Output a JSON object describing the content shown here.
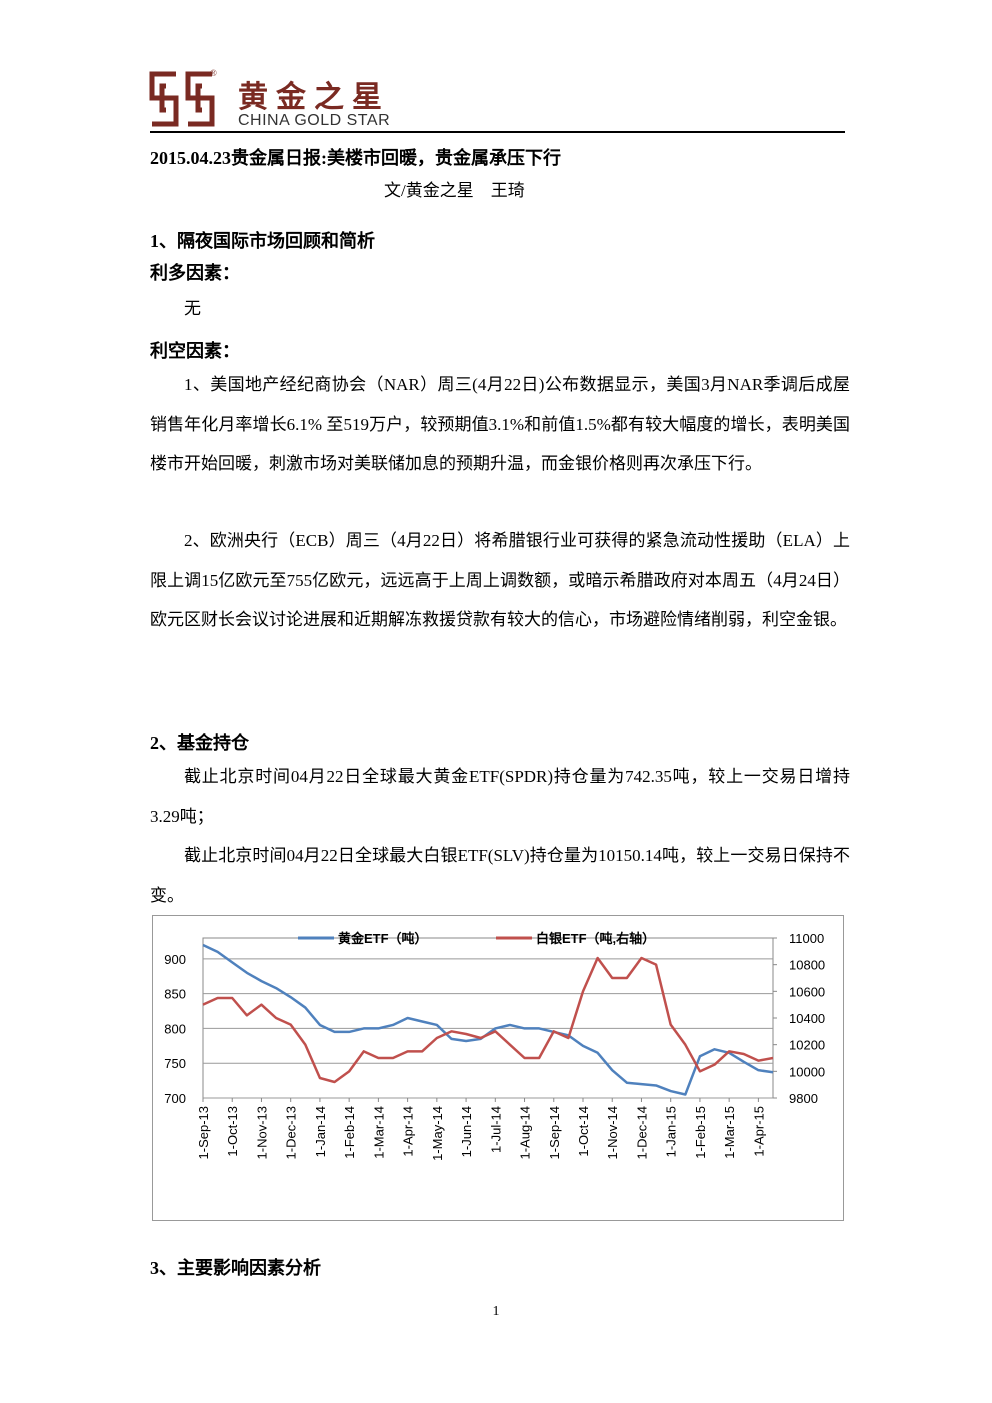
{
  "header": {
    "logo_cn": "黄金之星",
    "logo_en": "CHINA GOLD STAR",
    "registered": "®"
  },
  "title": "2015.04.23贵金属日报:美楼市回暖，贵金属承压下行",
  "byline": "文/黄金之星　王琦",
  "sections": [
    {
      "heading": "1、隔夜国际市场回顾和简析",
      "subsections": [
        {
          "heading": "利多因素：",
          "paragraphs": [
            "无"
          ]
        },
        {
          "heading": "利空因素：",
          "paragraphs": [
            "1、美国地产经纪商协会（NAR）周三(4月22日)公布数据显示，美国3月NAR季调后成屋销售年化月率增长6.1% 至519万户，较预期值3.1%和前值1.5%都有较大幅度的增长，表明美国楼市开始回暖，刺激市场对美联储加息的预期升温，而金银价格则再次承压下行。",
            "2、欧洲央行（ECB）周三（4月22日）将希腊银行业可获得的紧急流动性援助（ELA）上限上调15亿欧元至755亿欧元，远远高于上周上调数额，或暗示希腊政府对本周五（4月24日）欧元区财长会议讨论进展和近期解冻救援贷款有较大的信心，市场避险情绪削弱，利空金银。"
          ]
        }
      ]
    },
    {
      "heading": "2、基金持仓",
      "paragraphs": [
        "截止北京时间04月22日全球最大黄金ETF(SPDR)持仓量为742.35吨，较上一交易日增持3.29吨；",
        "截止北京时间04月22日全球最大白银ETF(SLV)持仓量为10150.14吨，较上一交易日保持不变。"
      ]
    },
    {
      "heading": "3、主要影响因素分析"
    }
  ],
  "chart_data": {
    "type": "line",
    "categories": [
      "1-Sep-13",
      null,
      "1-Oct-13",
      null,
      "1-Nov-13",
      null,
      "1-Dec-13",
      null,
      "1-Jan-14",
      null,
      "1-Feb-14",
      null,
      "1-Mar-14",
      null,
      "1-Apr-14",
      null,
      "1-May-14",
      null,
      "1-Jun-14",
      null,
      "1-Jul-14",
      null,
      "1-Aug-14",
      null,
      "1-Sep-14",
      null,
      "1-Oct-14",
      null,
      "1-Nov-14",
      null,
      "1-Dec-14",
      null,
      "1-Jan-15",
      null,
      "1-Feb-15",
      null,
      "1-Mar-15",
      null,
      "1-Apr-15",
      null
    ],
    "series": [
      {
        "name": "黄金ETF（吨）",
        "color": "#4f81bd",
        "values": [
          920,
          910,
          895,
          880,
          868,
          858,
          845,
          830,
          805,
          795,
          795,
          800,
          800,
          805,
          815,
          810,
          805,
          785,
          782,
          785,
          800,
          805,
          800,
          800,
          795,
          790,
          775,
          765,
          740,
          722,
          720,
          718,
          710,
          705,
          760,
          770,
          765,
          752,
          740,
          737
        ]
      },
      {
        "name": "白银ETF（吨,右轴）",
        "color": "#c0504d",
        "axis": "y2",
        "values": [
          10500,
          10550,
          10550,
          10420,
          10500,
          10400,
          10350,
          10200,
          9950,
          9920,
          10000,
          10150,
          10100,
          10100,
          10150,
          10150,
          10250,
          10300,
          10280,
          10250,
          10300,
          10200,
          10100,
          10100,
          10300,
          10250,
          10600,
          10850,
          10700,
          10700,
          10850,
          10800,
          10350,
          10200,
          10000,
          10050,
          10150,
          10130,
          10080,
          10100
        ]
      }
    ],
    "ylim": [
      700,
      930
    ],
    "yticks": [
      700,
      750,
      800,
      850,
      900
    ],
    "y2lim": [
      9800,
      11000
    ],
    "y2ticks": [
      9800,
      10000,
      10200,
      10400,
      10600,
      10800,
      11000
    ],
    "grid": true
  },
  "page_number": "1"
}
